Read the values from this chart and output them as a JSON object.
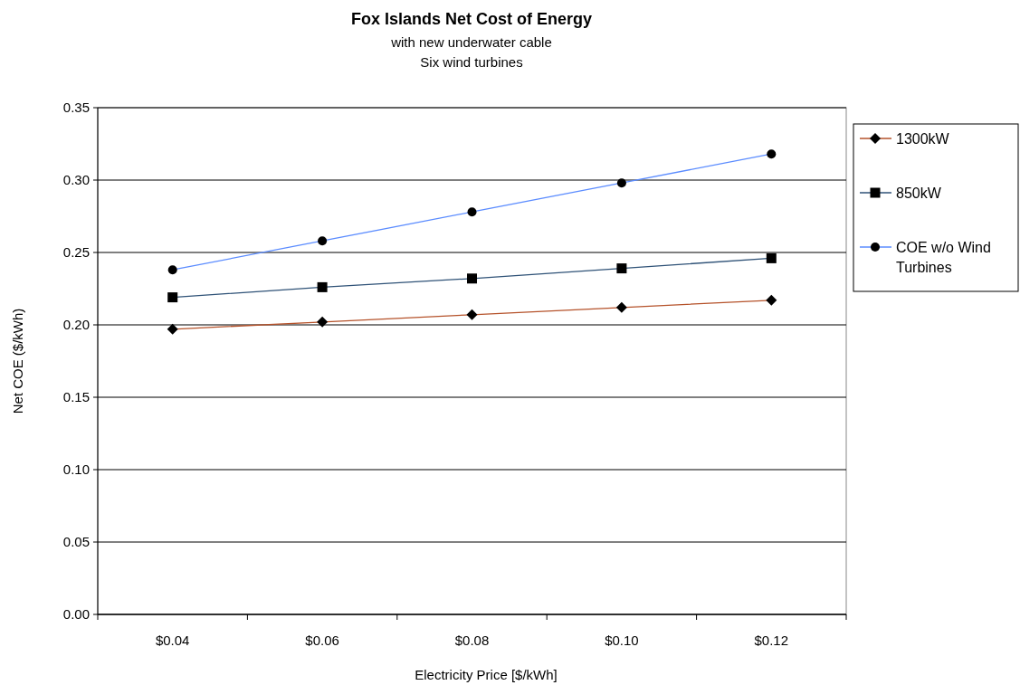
{
  "chart_data": {
    "type": "line",
    "title": "Fox Islands Net Cost of Energy",
    "subtitle": "with new underwater cable\nSix wind turbines",
    "xlabel": "Electricity Price [$/kWh]",
    "ylabel": "Net COE ($/kWh)",
    "categories": [
      "$0.04",
      "$0.06",
      "$0.08",
      "$0.10",
      "$0.12"
    ],
    "series": [
      {
        "name": "1300kW",
        "color": "#b5522a",
        "marker": "diamond",
        "values": [
          0.197,
          0.202,
          0.207,
          0.212,
          0.217
        ]
      },
      {
        "name": "850kW",
        "color": "#2f5277",
        "marker": "square",
        "values": [
          0.219,
          0.226,
          0.232,
          0.239,
          0.246
        ]
      },
      {
        "name": "COE w/o Wind Turbines",
        "color": "#5b8cff",
        "marker": "circle",
        "values": [
          0.238,
          0.258,
          0.278,
          0.298,
          0.318
        ]
      }
    ],
    "ylim": [
      0,
      0.35
    ],
    "yticks": [
      {
        "value": 0,
        "label": "0.00"
      },
      {
        "value": 0.05,
        "label": "0.05"
      },
      {
        "value": 0.1,
        "label": "0.10"
      },
      {
        "value": 0.15,
        "label": "0.15"
      },
      {
        "value": 0.2,
        "label": "0.20"
      },
      {
        "value": 0.25,
        "label": "0.25"
      },
      {
        "value": 0.3,
        "label": "0.30"
      },
      {
        "value": 0.35,
        "label": "0.35"
      }
    ],
    "grid": "y",
    "legend": "right",
    "line_style": "solid"
  }
}
